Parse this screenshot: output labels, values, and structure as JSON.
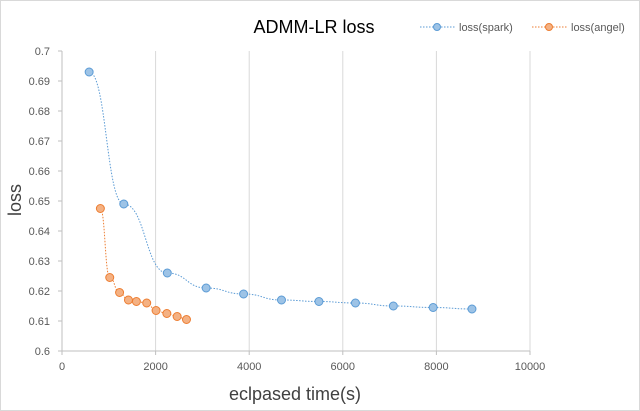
{
  "chart_data": {
    "type": "scatter",
    "title": "ADMM-LR  loss",
    "xlabel": "eclpased time(s)",
    "ylabel": "loss",
    "xlim": [
      0,
      10000
    ],
    "ylim": [
      0.6,
      0.7
    ],
    "xticks": [
      0,
      2000,
      4000,
      6000,
      8000,
      10000
    ],
    "yticks": [
      0.6,
      0.61,
      0.62,
      0.63,
      0.64,
      0.65,
      0.66,
      0.67,
      0.68,
      0.69,
      0.7
    ],
    "grid": "vertical",
    "legend_position": "top-right",
    "series": [
      {
        "name": "loss(spark)",
        "color": "#5b9bd5",
        "line_style": "dotted",
        "x": [
          580,
          1320,
          2250,
          3080,
          3880,
          4690,
          5490,
          6270,
          7080,
          7930,
          8760
        ],
        "y": [
          0.693,
          0.649,
          0.626,
          0.621,
          0.619,
          0.617,
          0.6165,
          0.616,
          0.615,
          0.6145,
          0.614
        ]
      },
      {
        "name": "loss(angel)",
        "color": "#ed7d31",
        "line_style": "dotted",
        "x": [
          820,
          1020,
          1230,
          1420,
          1590,
          1810,
          2010,
          2240,
          2460,
          2660
        ],
        "y": [
          0.6475,
          0.6245,
          0.6195,
          0.617,
          0.6165,
          0.616,
          0.6135,
          0.6125,
          0.6115,
          0.6105
        ]
      }
    ]
  }
}
